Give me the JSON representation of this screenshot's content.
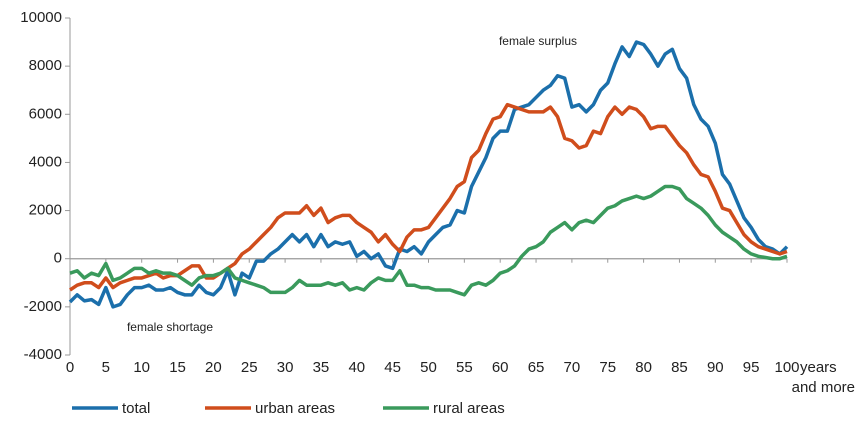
{
  "chart_data": {
    "type": "line",
    "x": [
      0,
      1,
      2,
      3,
      4,
      5,
      6,
      7,
      8,
      9,
      10,
      11,
      12,
      13,
      14,
      15,
      16,
      17,
      18,
      19,
      20,
      21,
      22,
      23,
      24,
      25,
      26,
      27,
      28,
      29,
      30,
      31,
      32,
      33,
      34,
      35,
      36,
      37,
      38,
      39,
      40,
      41,
      42,
      43,
      44,
      45,
      46,
      47,
      48,
      49,
      50,
      51,
      52,
      53,
      54,
      55,
      56,
      57,
      58,
      59,
      60,
      61,
      62,
      63,
      64,
      65,
      66,
      67,
      68,
      69,
      70,
      71,
      72,
      73,
      74,
      75,
      76,
      77,
      78,
      79,
      80,
      81,
      82,
      83,
      84,
      85,
      86,
      87,
      88,
      89,
      90,
      91,
      92,
      93,
      94,
      95,
      96,
      97,
      98,
      99,
      100
    ],
    "xlim": [
      0,
      100
    ],
    "xticks": [
      0,
      5,
      10,
      15,
      20,
      25,
      30,
      35,
      40,
      45,
      50,
      55,
      60,
      65,
      70,
      75,
      80,
      85,
      90,
      95,
      100
    ],
    "xlabel_lines": [
      "years",
      "and more"
    ],
    "ylim": [
      -4000,
      10000
    ],
    "yticks": [
      -4000,
      -2000,
      0,
      2000,
      4000,
      6000,
      8000,
      10000
    ],
    "annotations": [
      "female surplus",
      "female shortage"
    ],
    "series": [
      {
        "name": "total",
        "color": "#1b6fab",
        "values": [
          -1800,
          -1500,
          -1750,
          -1700,
          -1900,
          -1200,
          -2000,
          -1900,
          -1500,
          -1200,
          -1200,
          -1100,
          -1300,
          -1300,
          -1200,
          -1400,
          -1500,
          -1500,
          -1100,
          -1400,
          -1500,
          -1200,
          -500,
          -1500,
          -600,
          -800,
          -100,
          -100,
          200,
          400,
          700,
          1000,
          700,
          1000,
          500,
          1000,
          500,
          700,
          600,
          700,
          100,
          300,
          0,
          200,
          -300,
          -400,
          400,
          300,
          500,
          200,
          700,
          1000,
          1300,
          1400,
          2000,
          1900,
          3000,
          3600,
          4200,
          5000,
          5300,
          5300,
          6200,
          6300,
          6400,
          6700,
          7000,
          7200,
          7600,
          7500,
          6300,
          6400,
          6100,
          6400,
          7000,
          7300,
          8100,
          8800,
          8400,
          9000,
          8900,
          8500,
          8000,
          8500,
          8700,
          7900,
          7500,
          6400,
          5800,
          5500,
          4800,
          3500,
          3100,
          2400,
          1700,
          1300,
          800,
          500,
          400,
          200,
          500
        ]
      },
      {
        "name": "urban areas",
        "color": "#d04d1c",
        "values": [
          -1300,
          -1100,
          -1000,
          -1000,
          -1200,
          -800,
          -1200,
          -1000,
          -900,
          -800,
          -800,
          -700,
          -600,
          -800,
          -700,
          -700,
          -500,
          -300,
          -300,
          -800,
          -800,
          -600,
          -400,
          -200,
          200,
          400,
          700,
          1000,
          1300,
          1700,
          1900,
          1900,
          1900,
          2200,
          1800,
          2100,
          1500,
          1700,
          1800,
          1800,
          1500,
          1300,
          1100,
          700,
          1000,
          600,
          300,
          900,
          1200,
          1200,
          1300,
          1700,
          2100,
          2500,
          3000,
          3200,
          4200,
          4500,
          5200,
          5800,
          5900,
          6400,
          6300,
          6200,
          6100,
          6100,
          6100,
          6300,
          5900,
          5000,
          4900,
          4600,
          4700,
          5300,
          5200,
          5900,
          6300,
          6000,
          6300,
          6200,
          5900,
          5400,
          5500,
          5500,
          5100,
          4700,
          4400,
          3900,
          3500,
          3400,
          2800,
          2100,
          2000,
          1500,
          1000,
          700,
          500,
          400,
          300,
          200,
          300
        ]
      },
      {
        "name": "rural areas",
        "color": "#3a9a5c",
        "values": [
          -600,
          -500,
          -800,
          -600,
          -700,
          -200,
          -900,
          -800,
          -600,
          -400,
          -400,
          -600,
          -500,
          -600,
          -600,
          -700,
          -900,
          -1100,
          -800,
          -700,
          -700,
          -600,
          -400,
          -800,
          -900,
          -1000,
          -1100,
          -1200,
          -1400,
          -1400,
          -1400,
          -1200,
          -900,
          -1100,
          -1100,
          -1100,
          -1000,
          -1100,
          -1000,
          -1300,
          -1200,
          -1300,
          -1000,
          -800,
          -900,
          -900,
          -500,
          -1100,
          -1100,
          -1200,
          -1200,
          -1300,
          -1300,
          -1300,
          -1400,
          -1500,
          -1100,
          -1000,
          -1100,
          -900,
          -600,
          -500,
          -300,
          100,
          400,
          500,
          700,
          1100,
          1300,
          1500,
          1200,
          1500,
          1600,
          1500,
          1800,
          2100,
          2200,
          2400,
          2500,
          2600,
          2500,
          2600,
          2800,
          3000,
          3000,
          2900,
          2500,
          2300,
          2100,
          1800,
          1400,
          1100,
          900,
          700,
          400,
          200,
          100,
          50,
          0,
          0,
          100
        ]
      }
    ]
  }
}
